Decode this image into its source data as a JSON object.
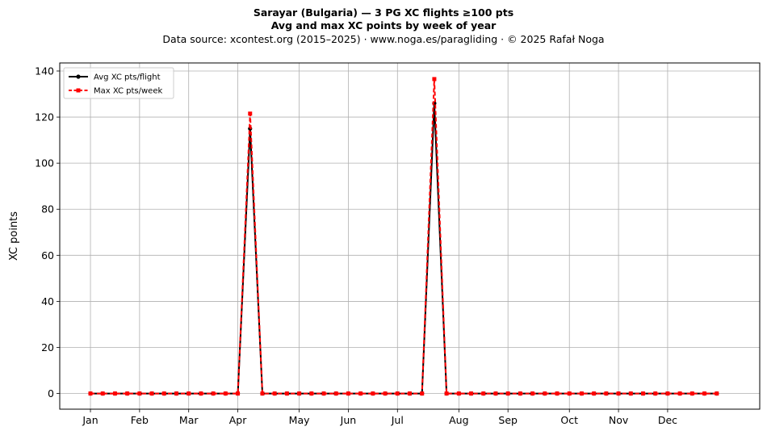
{
  "header": {
    "title_line1": "Sarayar (Bulgaria)  —  3 PG XC flights ≥100 pts",
    "title_line2": "Avg and max XC points by week of year",
    "source": "Data source: xcontest.org (2015–2025)  ·  www.noga.es/paragliding  ·  © 2025 Rafał Noga"
  },
  "chart_data": {
    "type": "line",
    "title": "Sarayar (Bulgaria)  —  3 PG XC flights ≥100 pts",
    "subtitle": "Avg and max XC points by week of year",
    "xlabel": "",
    "ylabel": "XC points",
    "x_unit": "week of year",
    "xlim": [
      -2.5,
      54.5
    ],
    "ylim": [
      -6.8,
      143.5
    ],
    "grid": true,
    "legend_position": "top-left",
    "x_ticks": [
      {
        "label": "Jan",
        "week": 0
      },
      {
        "label": "Feb",
        "week": 4
      },
      {
        "label": "Mar",
        "week": 8
      },
      {
        "label": "Apr",
        "week": 12
      },
      {
        "label": "May",
        "week": 17
      },
      {
        "label": "Jun",
        "week": 21
      },
      {
        "label": "Jul",
        "week": 25
      },
      {
        "label": "Aug",
        "week": 30
      },
      {
        "label": "Sep",
        "week": 34
      },
      {
        "label": "Oct",
        "week": 39
      },
      {
        "label": "Nov",
        "week": 43
      },
      {
        "label": "Dec",
        "week": 47
      }
    ],
    "y_ticks": [
      0,
      20,
      40,
      60,
      80,
      100,
      120,
      140
    ],
    "x": [
      0,
      1,
      2,
      3,
      4,
      5,
      6,
      7,
      8,
      9,
      10,
      11,
      12,
      13,
      14,
      15,
      16,
      17,
      18,
      19,
      20,
      21,
      22,
      23,
      24,
      25,
      26,
      27,
      28,
      29,
      30,
      31,
      32,
      33,
      34,
      35,
      36,
      37,
      38,
      39,
      40,
      41,
      42,
      43,
      44,
      45,
      46,
      47,
      48,
      49,
      50,
      51
    ],
    "series": [
      {
        "name": "Avg XC pts/flight",
        "color": "#000000",
        "style": "solid",
        "marker": "circle",
        "values": [
          0,
          0,
          0,
          0,
          0,
          0,
          0,
          0,
          0,
          0,
          0,
          0,
          0,
          115,
          0,
          0,
          0,
          0,
          0,
          0,
          0,
          0,
          0,
          0,
          0,
          0,
          0,
          0,
          126,
          0,
          0,
          0,
          0,
          0,
          0,
          0,
          0,
          0,
          0,
          0,
          0,
          0,
          0,
          0,
          0,
          0,
          0,
          0,
          0,
          0,
          0,
          0
        ]
      },
      {
        "name": "Max XC pts/week",
        "color": "#ff0000",
        "style": "dashed",
        "marker": "square",
        "values": [
          0,
          0,
          0,
          0,
          0,
          0,
          0,
          0,
          0,
          0,
          0,
          0,
          0,
          121.5,
          0,
          0,
          0,
          0,
          0,
          0,
          0,
          0,
          0,
          0,
          0,
          0,
          0,
          0,
          136.5,
          0,
          0,
          0,
          0,
          0,
          0,
          0,
          0,
          0,
          0,
          0,
          0,
          0,
          0,
          0,
          0,
          0,
          0,
          0,
          0,
          0,
          0,
          0
        ]
      }
    ]
  }
}
